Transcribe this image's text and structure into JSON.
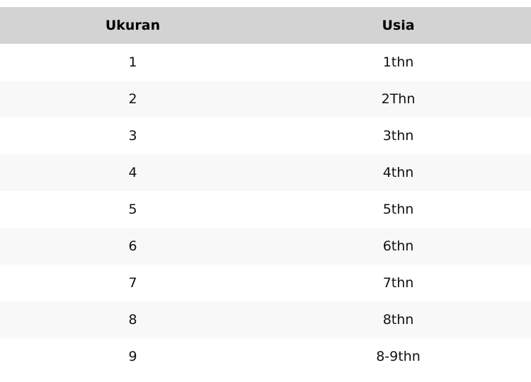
{
  "table": {
    "headers": [
      "Ukuran",
      "Usia"
    ],
    "rows": [
      [
        "1",
        "1thn"
      ],
      [
        "2",
        "2Thn"
      ],
      [
        "3",
        "3thn"
      ],
      [
        "4",
        "4thn"
      ],
      [
        "5",
        "5thn"
      ],
      [
        "6",
        "6thn"
      ],
      [
        "7",
        "7thn"
      ],
      [
        "8",
        "8thn"
      ],
      [
        "9",
        "8-9thn"
      ]
    ]
  }
}
